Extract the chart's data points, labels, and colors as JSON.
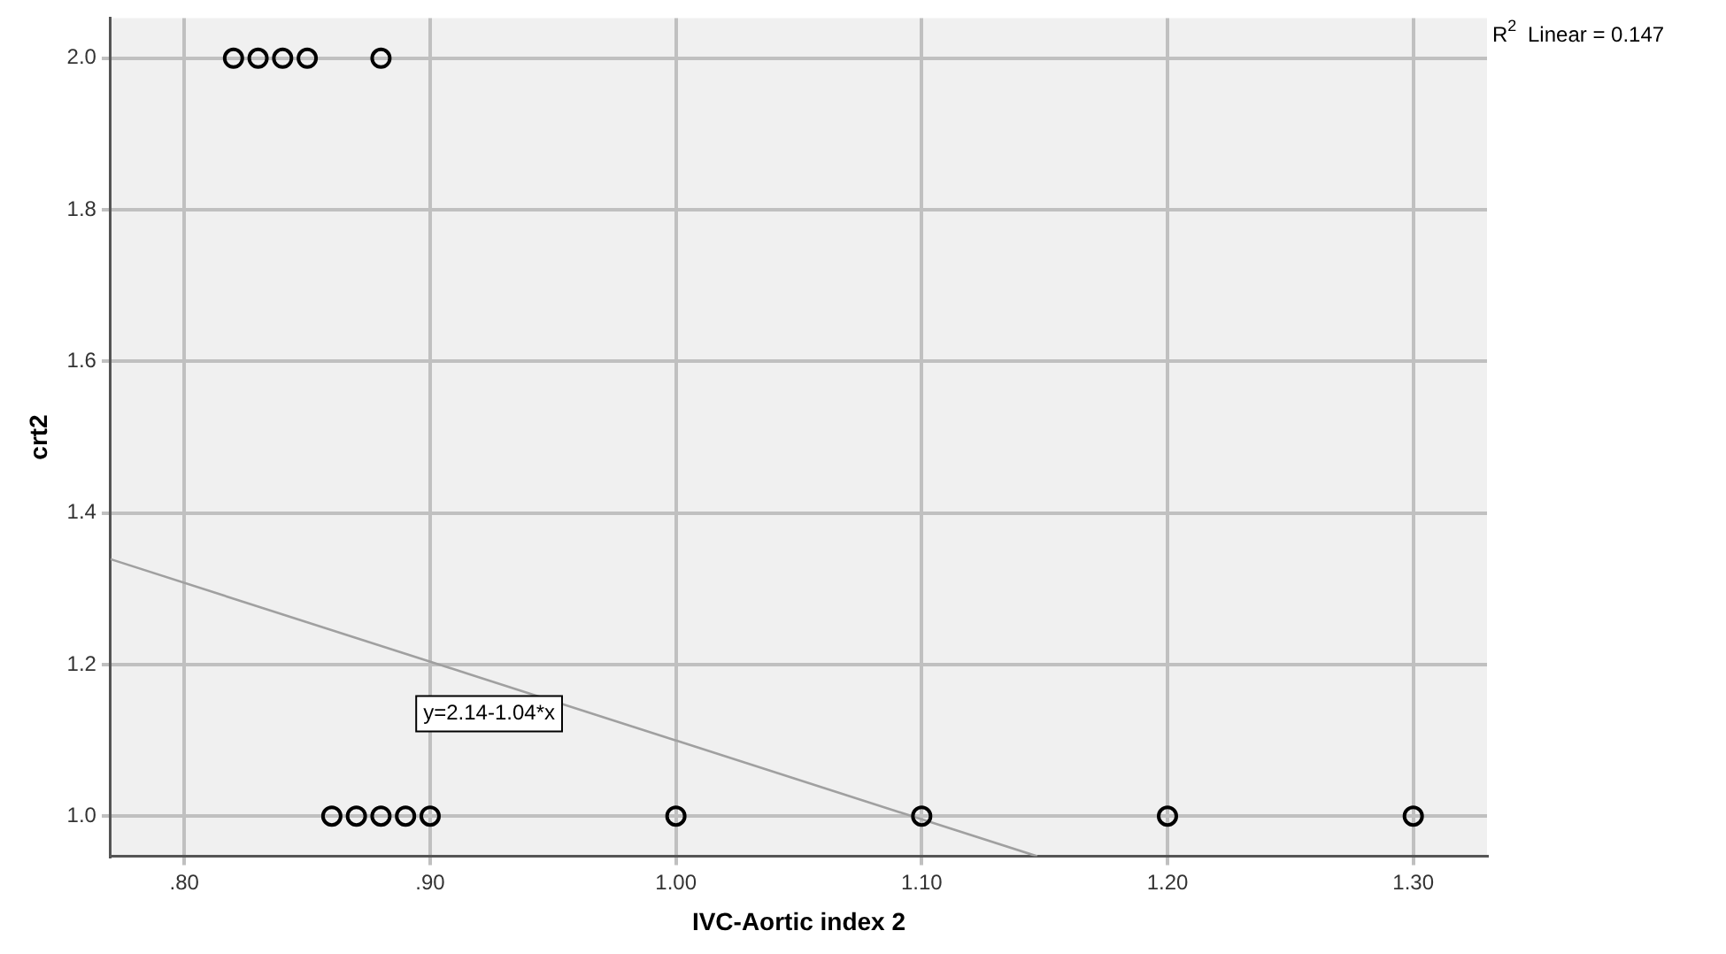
{
  "chart_data": {
    "type": "scatter",
    "xlabel": "IVC-Aortic index 2",
    "ylabel": "crt2",
    "xlim": [
      0.77,
      1.33
    ],
    "ylim": [
      0.947,
      2.053
    ],
    "xticks": [
      {
        "value": 0.8,
        "label": ".80"
      },
      {
        "value": 0.9,
        "label": ".90"
      },
      {
        "value": 1.0,
        "label": "1.00"
      },
      {
        "value": 1.1,
        "label": "1.10"
      },
      {
        "value": 1.2,
        "label": "1.20"
      },
      {
        "value": 1.3,
        "label": "1.30"
      }
    ],
    "yticks": [
      {
        "value": 1.0,
        "label": "1.0"
      },
      {
        "value": 1.2,
        "label": "1.2"
      },
      {
        "value": 1.4,
        "label": "1.4"
      },
      {
        "value": 1.6,
        "label": "1.6"
      },
      {
        "value": 1.8,
        "label": "1.8"
      },
      {
        "value": 2.0,
        "label": "2.0"
      }
    ],
    "grid": true,
    "legend": false,
    "marker": "circle",
    "series": [
      {
        "color": "#000000",
        "x": [
          0.82,
          0.83,
          0.84,
          0.85,
          0.88,
          0.86,
          0.87,
          0.88,
          0.89,
          0.9,
          1.0,
          1.1,
          1.2,
          1.3
        ],
        "values": [
          2,
          2,
          2,
          2,
          2,
          1,
          1,
          1,
          1,
          1,
          1,
          1,
          1,
          1
        ]
      },
      {
        "type": "line",
        "color": "#a0a0a0",
        "x": [
          0.77,
          1.147
        ],
        "values": [
          1.339,
          0.947
        ],
        "marker": "none",
        "line_style": "solid"
      }
    ],
    "annotations": [
      "R$^{2}$ Linear = 0.147",
      "y=2.14-1.04*x"
    ]
  }
}
